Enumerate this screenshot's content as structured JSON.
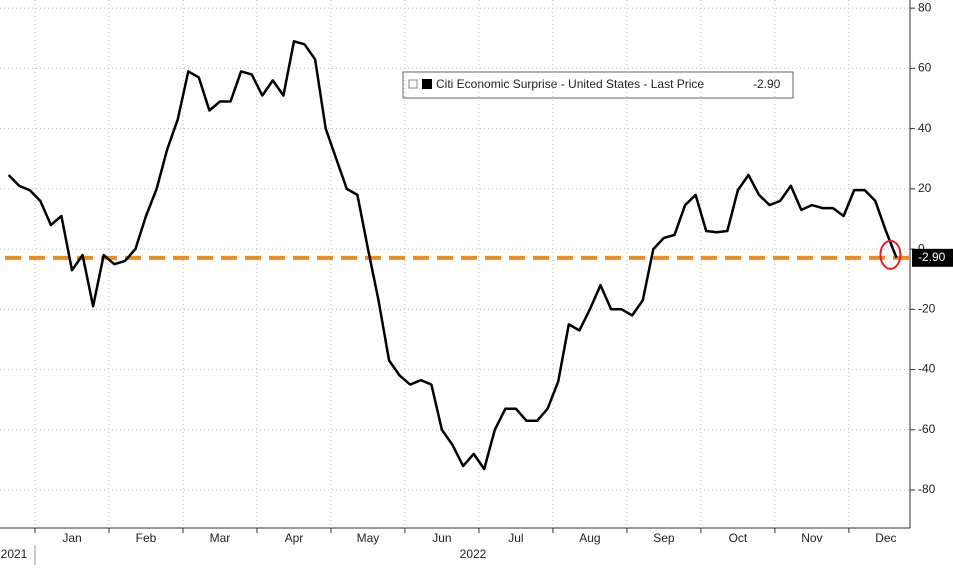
{
  "chart_data": {
    "type": "line",
    "legend_label": "Citi Economic Surprise - United States - Last Price",
    "last_price": -2.9,
    "last_price_label": "-2.90",
    "year_labels": [
      "2021",
      "2022"
    ],
    "categories": [
      null,
      null,
      null,
      null,
      null,
      null,
      "Jan",
      null,
      null,
      null,
      null,
      null,
      null,
      "Feb",
      null,
      null,
      null,
      null,
      null,
      null,
      "Mar",
      null,
      null,
      null,
      null,
      null,
      null,
      "Apr",
      null,
      null,
      null,
      null,
      null,
      null,
      "May",
      null,
      null,
      null,
      null,
      null,
      null,
      "Jun",
      null,
      null,
      null,
      null,
      null,
      null,
      "Jul",
      null,
      null,
      null,
      null,
      null,
      null,
      "Aug",
      null,
      null,
      null,
      null,
      null,
      null,
      "Sep",
      null,
      null,
      null,
      null,
      null,
      null,
      "Oct",
      null,
      null,
      null,
      null,
      null,
      null,
      "Nov",
      null,
      null,
      null,
      null,
      null,
      null,
      "Dec",
      null
    ],
    "series": [
      {
        "name": "Citi Economic Surprise - United States",
        "color": "#000000",
        "values": [
          24.6,
          21,
          19.6,
          16,
          8,
          11,
          -7,
          -2,
          -19,
          -2,
          -5,
          -4,
          0,
          11,
          20,
          33,
          43,
          59,
          57,
          46,
          49,
          49,
          59,
          58,
          51,
          56,
          51,
          69,
          68,
          63,
          40,
          30,
          20,
          18,
          0,
          -17,
          -37,
          -42,
          -45,
          -43.5,
          -45,
          -60,
          -65,
          -72,
          -68,
          -73,
          -60,
          -53,
          -53,
          -57,
          -57,
          -53,
          -44,
          -25,
          -27,
          -20,
          -12,
          -20,
          -20,
          -22,
          -17,
          0,
          3.7,
          4.7,
          14.6,
          18,
          6,
          5.6,
          6,
          19.6,
          24.6,
          18,
          14.6,
          16,
          21,
          13,
          14.6,
          13.6,
          13.6,
          11,
          19.6,
          19.6,
          16,
          6,
          -2.9
        ]
      }
    ],
    "line_color": "#f08c1e",
    "ylim": [
      -92.6,
      82.7
    ],
    "yticks": [
      -80,
      -60,
      -40,
      -20,
      0,
      20,
      40,
      60,
      80
    ],
    "grid": true
  }
}
